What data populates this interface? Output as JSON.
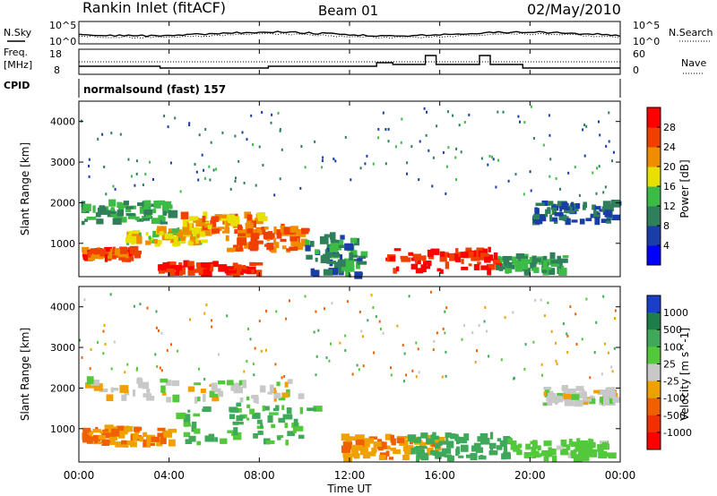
{
  "header": {
    "station": "Rankin Inlet (fitACF)",
    "beam": "Beam 01",
    "date": "02/May/2010"
  },
  "top_panels": {
    "nsky_label": "N.Sky",
    "nsearch_label": "N.Search",
    "freq_label": "Freq.",
    "freq_unit": "[MHz]",
    "nave_label": "Nave",
    "cpid_label": "CPID",
    "cpid_text": "normalsound (fast) 157",
    "noise_ticks": [
      "10^5",
      "10^0"
    ],
    "freq_ticks": [
      "18",
      "8"
    ],
    "nave_ticks": [
      "60",
      "0"
    ]
  },
  "chart_data": [
    {
      "type": "heatmap",
      "title": "",
      "xlabel": "Time UT",
      "ylabel": "Slant Range [km]",
      "xlim": [
        0,
        24
      ],
      "ylim": [
        180,
        4500
      ],
      "x_ticks": [
        "00:00",
        "04:00",
        "08:00",
        "12:00",
        "16:00",
        "20:00",
        "00:00"
      ],
      "y_ticks": [
        1000,
        2000,
        3000,
        4000
      ],
      "colorbar": {
        "label": "Power [dB]",
        "ticks": [
          4,
          8,
          12,
          16,
          20,
          24,
          28
        ],
        "colors": [
          "#0000ff",
          "#1a3ea8",
          "#2f7f5a",
          "#3cbb46",
          "#e8e000",
          "#f08c00",
          "#f04000",
          "#ff0000"
        ]
      },
      "regions": [
        {
          "t0": 0.1,
          "t1": 4.0,
          "r0": 1500,
          "r1": 2000,
          "level": 12
        },
        {
          "t0": 0.1,
          "t1": 2.5,
          "r0": 600,
          "r1": 850,
          "level": 26
        },
        {
          "t0": 2.0,
          "t1": 5.5,
          "r0": 1000,
          "r1": 1350,
          "level": 18
        },
        {
          "t0": 4.5,
          "t1": 8.0,
          "r0": 1200,
          "r1": 1700,
          "level": 22
        },
        {
          "t0": 6.5,
          "t1": 10.0,
          "r0": 800,
          "r1": 1400,
          "level": 24
        },
        {
          "t0": 3.5,
          "t1": 8.0,
          "r0": 250,
          "r1": 500,
          "level": 28
        },
        {
          "t0": 13.5,
          "t1": 18.5,
          "r0": 300,
          "r1": 850,
          "level": 28
        },
        {
          "t0": 18.5,
          "t1": 21.5,
          "r0": 300,
          "r1": 700,
          "level": 12
        },
        {
          "t0": 20.0,
          "t1": 23.8,
          "r0": 1500,
          "r1": 2000,
          "level": 8
        },
        {
          "t0": 10.0,
          "t1": 12.5,
          "r0": 200,
          "r1": 1200,
          "level": 10
        }
      ]
    },
    {
      "type": "heatmap",
      "title": "",
      "xlabel": "Time UT",
      "ylabel": "Slant Range [km]",
      "xlim": [
        0,
        24
      ],
      "ylim": [
        180,
        4500
      ],
      "x_ticks": [
        "00:00",
        "04:00",
        "08:00",
        "12:00",
        "16:00",
        "20:00",
        "00:00"
      ],
      "y_ticks": [
        1000,
        2000,
        3000,
        4000
      ],
      "colorbar": {
        "label": "Velocity [m s^-1]",
        "ticks": [
          1000,
          500,
          100,
          25,
          -25,
          -100,
          -500,
          -1000
        ],
        "colors": [
          "#1a3ec8",
          "#1e7e4a",
          "#3fa85a",
          "#52c83a",
          "#c8c8c8",
          "#f0a000",
          "#f06000",
          "#f03000",
          "#ff0000"
        ]
      },
      "regions": [
        {
          "t0": 0.1,
          "t1": 10.0,
          "r0": 1700,
          "r1": 2200,
          "level": 0
        },
        {
          "t0": 0.1,
          "t1": 4.0,
          "r0": 600,
          "r1": 1000,
          "level": -100
        },
        {
          "t0": 4.0,
          "t1": 10.5,
          "r0": 600,
          "r1": 1600,
          "level": 100
        },
        {
          "t0": 11.5,
          "t1": 16.0,
          "r0": 250,
          "r1": 800,
          "level": -80
        },
        {
          "t0": 14.5,
          "t1": 19.0,
          "r0": 250,
          "r1": 850,
          "level": 200
        },
        {
          "t0": 19.0,
          "t1": 23.5,
          "r0": 250,
          "r1": 700,
          "level": 60
        },
        {
          "t0": 20.5,
          "t1": 23.8,
          "r0": 1600,
          "r1": 2000,
          "level": 0
        }
      ]
    }
  ]
}
